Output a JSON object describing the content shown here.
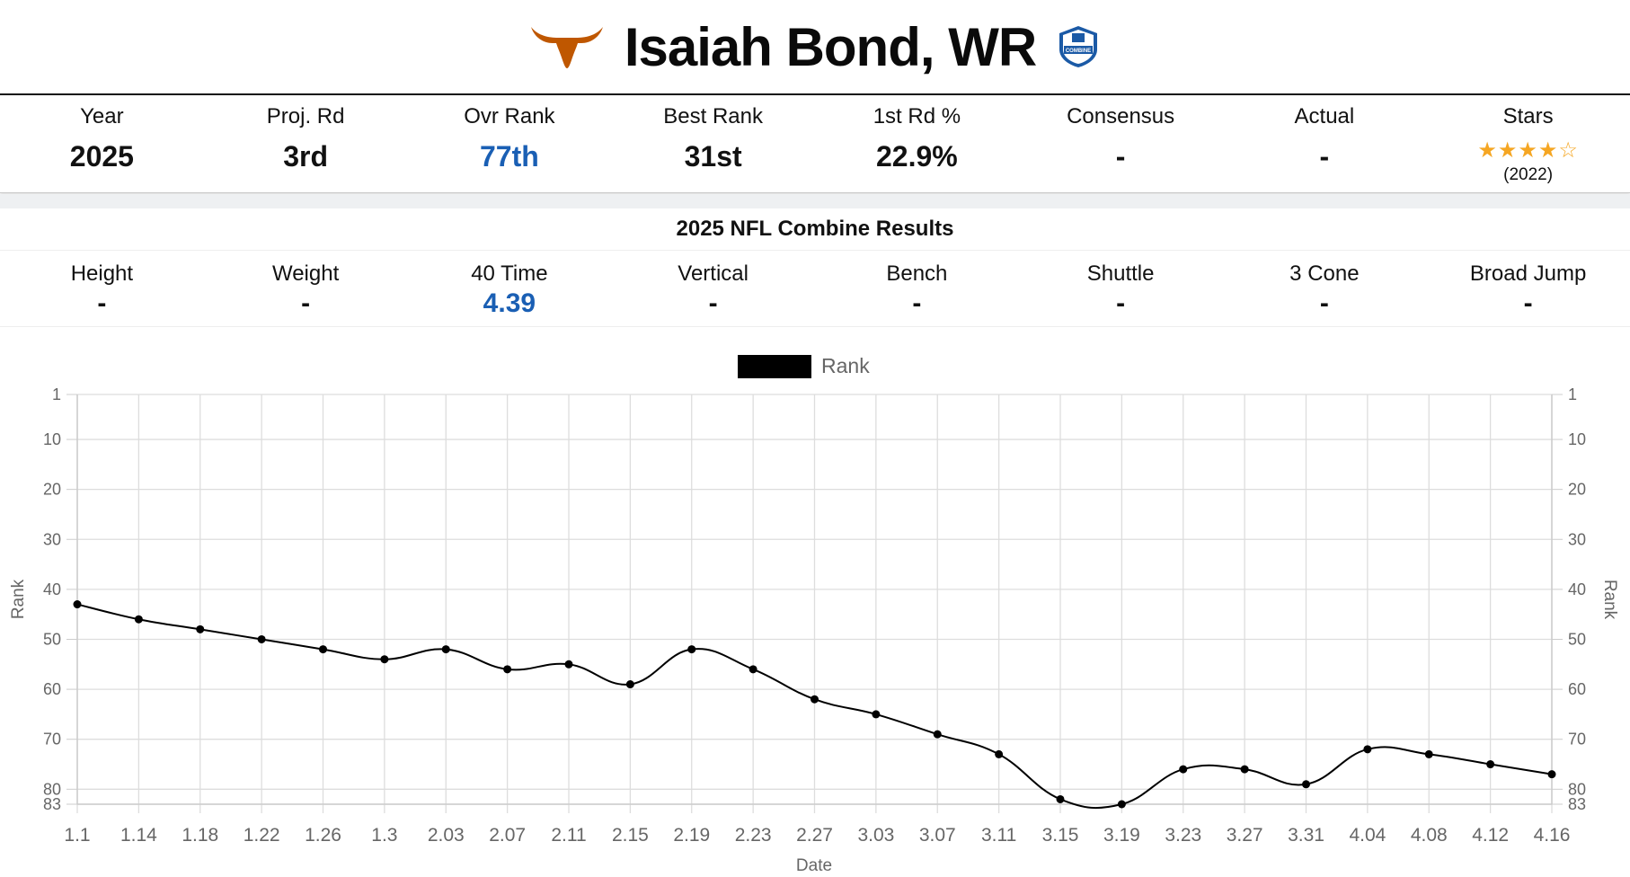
{
  "header": {
    "player_name": "Isaiah Bond, WR",
    "team_logo": "longhorn-logo",
    "badge": "nfl-combine-badge",
    "badge_text": "COMBINE",
    "colors": {
      "team": "#bf5700",
      "badge": "#1b5aa6"
    }
  },
  "stats": [
    {
      "label": "Year",
      "value": "2025"
    },
    {
      "label": "Proj. Rd",
      "value": "3rd"
    },
    {
      "label": "Ovr Rank",
      "value": "77th",
      "accent": "#1a5fb4"
    },
    {
      "label": "Best Rank",
      "value": "31st"
    },
    {
      "label": "1st Rd %",
      "value": "22.9%"
    },
    {
      "label": "Consensus",
      "value": "-"
    },
    {
      "label": "Actual",
      "value": "-"
    },
    {
      "label": "Stars",
      "rating": 4,
      "max": 5,
      "year": "(2022)"
    }
  ],
  "combine": {
    "title": "2025 NFL Combine Results",
    "items": [
      {
        "label": "Height",
        "value": "-"
      },
      {
        "label": "Weight",
        "value": "-"
      },
      {
        "label": "40 Time",
        "value": "4.39",
        "accent": "#1a5fb4"
      },
      {
        "label": "Vertical",
        "value": "-"
      },
      {
        "label": "Bench",
        "value": "-"
      },
      {
        "label": "Shuttle",
        "value": "-"
      },
      {
        "label": "3 Cone",
        "value": "-"
      },
      {
        "label": "Broad Jump",
        "value": "-"
      }
    ]
  },
  "chart_data": {
    "type": "line",
    "legend": {
      "label": "Rank",
      "position": "top-center"
    },
    "xlabel": "Date",
    "ylabel": "Rank",
    "y_reversed": true,
    "ylim": [
      1,
      83
    ],
    "y_ticks": [
      1,
      10,
      20,
      30,
      40,
      50,
      60,
      70,
      80,
      83
    ],
    "grid": true,
    "line_color": "#000000",
    "categories": [
      "1.1",
      "1.14",
      "1.18",
      "1.22",
      "1.26",
      "1.3",
      "2.03",
      "2.07",
      "2.11",
      "2.15",
      "2.19",
      "2.23",
      "2.27",
      "3.03",
      "3.07",
      "3.11",
      "3.15",
      "3.19",
      "3.23",
      "3.27",
      "3.31",
      "4.04",
      "4.08",
      "4.12",
      "4.16"
    ],
    "series": [
      {
        "name": "Rank",
        "values": [
          43,
          46,
          48,
          50,
          52,
          54,
          52,
          56,
          55,
          59,
          52,
          56,
          62,
          65,
          69,
          73,
          82,
          83,
          76,
          76,
          79,
          72,
          73,
          75,
          77
        ]
      }
    ]
  }
}
